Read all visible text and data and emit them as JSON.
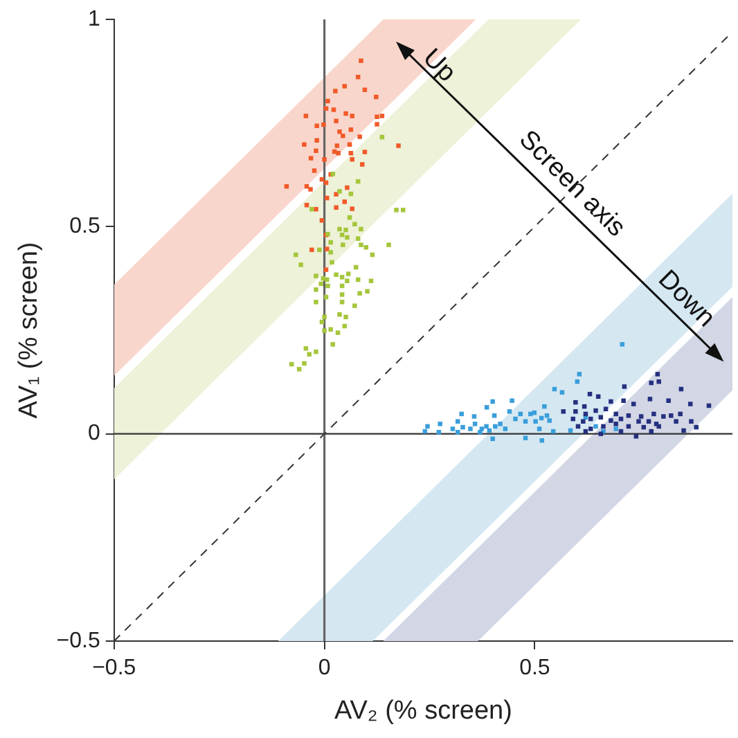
{
  "chart_data": {
    "type": "scatter",
    "xlabel": "AV₂ (% screen)",
    "ylabel": "AV₁ (% screen)",
    "xlim": [
      -0.5,
      0.97
    ],
    "ylim": [
      -0.5,
      1
    ],
    "xticks": [
      {
        "value": -0.5,
        "label": "−0.5"
      },
      0,
      0.5
    ],
    "yticks": [
      {
        "value": -0.5,
        "label": "−0.5"
      },
      0,
      0.5,
      1
    ],
    "grid": false,
    "legend": false,
    "marker": "square",
    "ref_lines": [
      {
        "axis": "x",
        "value": 0,
        "color": "#666666"
      },
      {
        "axis": "y",
        "value": 0,
        "color": "#333333"
      }
    ],
    "annotations": [
      "Up",
      "Screen axis",
      "Down"
    ],
    "series": [
      {
        "type": "area",
        "marker": "none",
        "color": "#f9d6cc",
        "x": [
          -0.5,
          0.14,
          0.36,
          -0.5
        ],
        "values": [
          0.36,
          1,
          1,
          0.14
        ]
      },
      {
        "type": "area",
        "marker": "none",
        "color": "#edf2d8",
        "x": [
          -0.5,
          0.39,
          0.61,
          -0.5
        ],
        "values": [
          0.11,
          1,
          1,
          -0.11
        ]
      },
      {
        "type": "area",
        "marker": "none",
        "color": "#d5e8f2",
        "x": [
          -0.11,
          0.97,
          0.97,
          0.115
        ],
        "values": [
          -0.5,
          0.58,
          0.355,
          -0.5
        ]
      },
      {
        "type": "area",
        "marker": "none",
        "color": "#d2d6e5",
        "x": [
          0.14,
          0.97,
          0.97,
          0.365
        ],
        "values": [
          -0.5,
          0.33,
          0.105,
          -0.5
        ]
      },
      {
        "type": "line",
        "marker": "none",
        "color": "#333333",
        "line_style": "dashed",
        "x": [
          -0.5,
          0.97
        ],
        "values": [
          -0.5,
          0.97
        ]
      },
      {
        "type": "scatter",
        "color": "#f15a29",
        "x": [
          0.087,
          0.08,
          0.048,
          0.026,
          0.096,
          0.123,
          0.008,
          0.004,
          0.022,
          -0.044,
          0.051,
          0.066,
          0.125,
          0.137,
          0.028,
          -0.002,
          -0.018,
          0.125,
          0.036,
          0.063,
          0.044,
          -0.018,
          0.084,
          -0.048,
          0.03,
          0.06,
          0.176,
          -0.02,
          0.024,
          0.033,
          0.063,
          0.096,
          -0.032,
          0,
          0.066,
          0.09,
          -0.024,
          0.015,
          -0.006,
          0.004,
          -0.09,
          -0.042,
          -0.033,
          0.054,
          0.028,
          0.006,
          0.048,
          -0.042,
          -0.02,
          0.028,
          0.066,
          -0.006,
          0.004,
          0.006,
          -0.03,
          0.004
        ],
        "values": [
          0.9,
          0.861,
          0.839,
          0.827,
          0.83,
          0.813,
          0.803,
          0.785,
          0.782,
          0.767,
          0.773,
          0.767,
          0.765,
          0.767,
          0.755,
          0.746,
          0.743,
          0.747,
          0.729,
          0.734,
          0.719,
          0.708,
          0.717,
          0.698,
          0.695,
          0.698,
          0.695,
          0.683,
          0.681,
          0.677,
          0.677,
          0.68,
          0.665,
          0.662,
          0.662,
          0.65,
          0.635,
          0.626,
          0.614,
          0.606,
          0.597,
          0.597,
          0.59,
          0.594,
          0.578,
          0.569,
          0.56,
          0.552,
          0.542,
          0.546,
          0.543,
          0.515,
          0.48,
          0.446,
          0.444,
          0.396
        ]
      },
      {
        "type": "scatter",
        "color": "#a5c63b",
        "x": [
          0.137,
          0.02,
          0.08,
          0.036,
          0.063,
          -0.03,
          0.171,
          0.187,
          0.06,
          0.072,
          0.036,
          0.051,
          0.087,
          0.008,
          0.042,
          0.054,
          0.08,
          0.015,
          0.044,
          0.087,
          0.099,
          0.153,
          -0.012,
          0.015,
          -0.068,
          0.114,
          0.075,
          0.018,
          -0.056,
          0.057,
          -0.02,
          0.028,
          0.042,
          -0.003,
          0.006,
          0.111,
          0.054,
          0.08,
          -0.008,
          0.008,
          0.042,
          -0.02,
          0.102,
          0.084,
          0.042,
          0.004,
          -0.02,
          0.042,
          0.072,
          0,
          0.036,
          0.051,
          -0.006,
          0.048,
          0.015,
          0,
          0.032,
          0.02,
          -0.044,
          -0.02,
          -0.036,
          -0.048,
          -0.078,
          -0.06
        ],
        "values": [
          0.716,
          0.627,
          0.609,
          0.585,
          0.579,
          0.542,
          0.54,
          0.54,
          0.522,
          0.506,
          0.494,
          0.492,
          0.494,
          0.482,
          0.48,
          0.474,
          0.471,
          0.462,
          0.456,
          0.456,
          0.45,
          0.456,
          0.444,
          0.438,
          0.432,
          0.432,
          0.402,
          0.414,
          0.408,
          0.386,
          0.381,
          0.384,
          0.378,
          0.375,
          0.372,
          0.369,
          0.369,
          0.372,
          0.362,
          0.357,
          0.357,
          0.348,
          0.344,
          0.339,
          0.336,
          0.33,
          0.318,
          0.318,
          0.309,
          0.282,
          0.288,
          0.282,
          0.27,
          0.26,
          0.252,
          0.249,
          0.244,
          0.216,
          0.206,
          0.198,
          0.192,
          0.17,
          0.168,
          0.156
        ]
      },
      {
        "type": "scatter",
        "color": "#3a9edb",
        "x": [
          0.708,
          0.606,
          0.601,
          0.547,
          0.565,
          0.4,
          0.446,
          0.386,
          0.523,
          0.326,
          0.356,
          0.404,
          0.44,
          0.466,
          0.49,
          0.499,
          0.529,
          0.245,
          0.275,
          0.317,
          0.329,
          0.358,
          0.385,
          0.418,
          0.43,
          0.454,
          0.478,
          0.502,
          0.516,
          0.535,
          0.305,
          0.347,
          0.374,
          0.392,
          0.406,
          0.239,
          0.272,
          0.317,
          0.37,
          0.4,
          0.478,
          0.517,
          0.544,
          0.585,
          0.621,
          0.645,
          0.663,
          0.693,
          0.511
        ],
        "values": [
          0.216,
          0.144,
          0.126,
          0.108,
          0.1,
          0.078,
          0.08,
          0.064,
          0.066,
          0.048,
          0.042,
          0.044,
          0.054,
          0.048,
          0.048,
          0.051,
          0.044,
          0.018,
          0.024,
          0.03,
          0.016,
          0.024,
          0.018,
          0.024,
          0.012,
          0.036,
          0.03,
          0.03,
          0.038,
          0.032,
          0.012,
          0.012,
          0.012,
          0.008,
          0.018,
          0.006,
          0.004,
          0.004,
          0.004,
          -0.012,
          -0.01,
          -0.016,
          0.006,
          0.008,
          0.04,
          0.018,
          0.006,
          0.012,
          0.012
        ]
      },
      {
        "type": "scatter",
        "color": "#25307f",
        "x": [
          0.792,
          0.777,
          0.795,
          0.713,
          0.848,
          0.631,
          0.651,
          0.597,
          0.618,
          0.681,
          0.711,
          0.735,
          0.774,
          0.818,
          0.87,
          0.914,
          0.568,
          0.597,
          0.621,
          0.645,
          0.669,
          0.693,
          0.723,
          0.753,
          0.783,
          0.806,
          0.824,
          0.846,
          0.591,
          0.615,
          0.633,
          0.657,
          0.681,
          0.705,
          0.747,
          0.771,
          0.789,
          0.836,
          0.872,
          0.603,
          0.633,
          0.663,
          0.693,
          0.723,
          0.759,
          0.795,
          0.854,
          0.884,
          0.621,
          0.657,
          0.705,
          0.741,
          0.777
        ],
        "values": [
          0.144,
          0.123,
          0.126,
          0.114,
          0.108,
          0.096,
          0.09,
          0.076,
          0.066,
          0.078,
          0.08,
          0.072,
          0.084,
          0.08,
          0.072,
          0.068,
          0.054,
          0.054,
          0.048,
          0.056,
          0.06,
          0.048,
          0.044,
          0.042,
          0.048,
          0.042,
          0.044,
          0.048,
          0.036,
          0.03,
          0.036,
          0.04,
          0.032,
          0.036,
          0.03,
          0.03,
          0.024,
          0.03,
          0.03,
          0.018,
          0.012,
          0.018,
          0.024,
          0.018,
          0.016,
          0.018,
          0.008,
          0.016,
          0.006,
          0,
          0.006,
          -0.006,
          0.006
        ]
      }
    ]
  }
}
